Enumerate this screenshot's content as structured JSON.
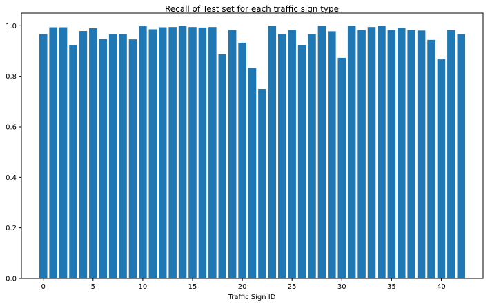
{
  "chart_data": {
    "type": "bar",
    "title": "Recall of Test set for each traffic sign type",
    "xlabel": "Traffic Sign ID",
    "ylabel": "",
    "xlim": [
      -2.2,
      44.2
    ],
    "ylim": [
      0.0,
      1.05
    ],
    "xticks": [
      0,
      5,
      10,
      15,
      20,
      25,
      30,
      35,
      40
    ],
    "xtick_labels": [
      "0",
      "5",
      "10",
      "15",
      "20",
      "25",
      "30",
      "35",
      "40"
    ],
    "yticks": [
      0.0,
      0.2,
      0.4,
      0.6,
      0.8,
      1.0
    ],
    "ytick_labels": [
      "0.0",
      "0.2",
      "0.4",
      "0.6",
      "0.8",
      "1.0"
    ],
    "grid": false,
    "bar_color": "#1f77b4",
    "categories": [
      0,
      1,
      2,
      3,
      4,
      5,
      6,
      7,
      8,
      9,
      10,
      11,
      12,
      13,
      14,
      15,
      16,
      17,
      18,
      19,
      20,
      21,
      22,
      23,
      24,
      25,
      26,
      27,
      28,
      29,
      30,
      31,
      32,
      33,
      34,
      35,
      36,
      37,
      38,
      39,
      40,
      41,
      42
    ],
    "values": [
      0.967,
      0.994,
      0.994,
      0.924,
      0.979,
      0.99,
      0.947,
      0.967,
      0.967,
      0.946,
      0.998,
      0.986,
      0.994,
      0.995,
      1.0,
      0.995,
      0.993,
      0.995,
      0.887,
      0.983,
      0.933,
      0.833,
      0.75,
      1.0,
      0.967,
      0.983,
      0.922,
      0.967,
      1.0,
      0.978,
      0.873,
      1.0,
      0.983,
      0.995,
      1.0,
      0.983,
      0.992,
      0.983,
      0.981,
      0.944,
      0.867,
      0.983,
      0.967
    ]
  }
}
